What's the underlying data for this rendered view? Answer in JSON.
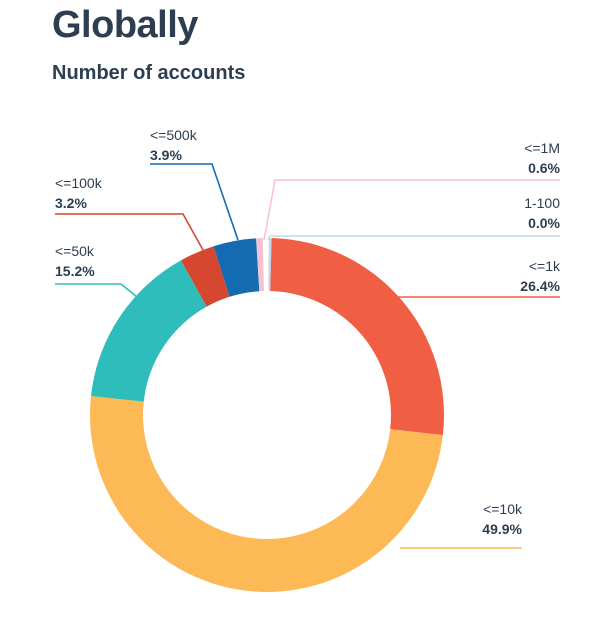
{
  "chart_data": {
    "type": "pie",
    "variant": "donut",
    "title": "Globally",
    "subtitle": "Number of accounts",
    "slices": [
      {
        "label": "1-100",
        "value_label": "0.0%",
        "value": 0.0,
        "color": "#BFD9EC"
      },
      {
        "label": "<=1k",
        "value_label": "26.4%",
        "value": 26.4,
        "color": "#F05F44"
      },
      {
        "label": "<=10k",
        "value_label": "49.9%",
        "value": 49.9,
        "color": "#FDB955"
      },
      {
        "label": "<=50k",
        "value_label": "15.2%",
        "value": 15.2,
        "color": "#2EBDBA"
      },
      {
        "label": "<=100k",
        "value_label": "3.2%",
        "value": 3.2,
        "color": "#D5472F"
      },
      {
        "label": "<=500k",
        "value_label": "3.9%",
        "value": 3.9,
        "color": "#146BB0"
      },
      {
        "label": "<=1M",
        "value_label": "0.6%",
        "value": 0.6,
        "color": "#F6C2D2"
      }
    ]
  }
}
